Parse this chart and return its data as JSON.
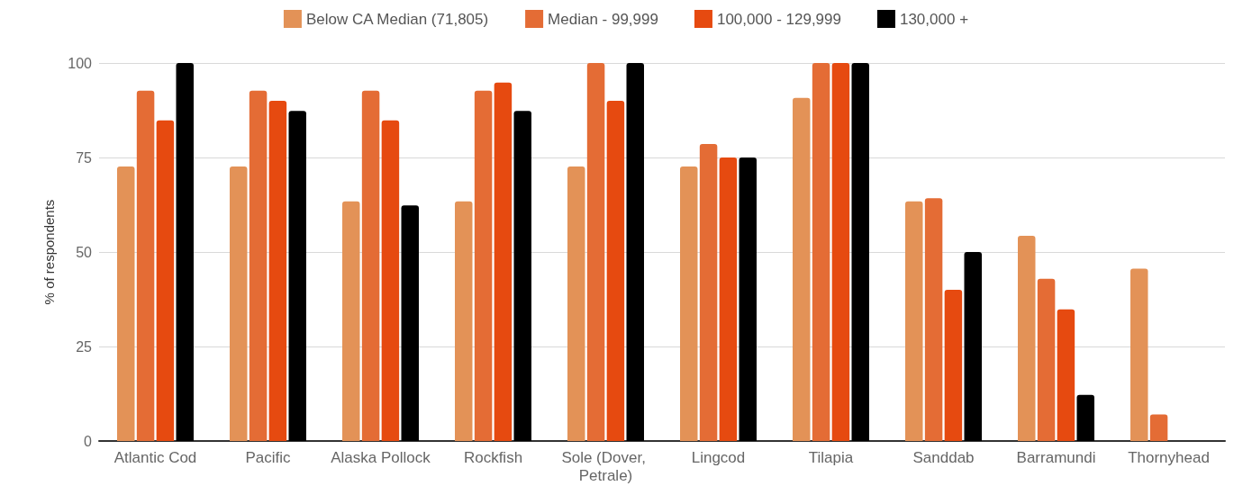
{
  "chart_data": {
    "type": "bar",
    "ylabel": "% of respondents",
    "categories": [
      "Atlantic Cod",
      "Pacific",
      "Alaska Pollock",
      "Rockfish",
      "Sole (Dover, Petrale)",
      "Lingcod",
      "Tilapia",
      "Sanddab",
      "Barramundi",
      "Thornyhead"
    ],
    "series": [
      {
        "name": "Below CA Median (71,805)",
        "color": "#e39257",
        "values": [
          72.6,
          72.6,
          63.4,
          63.4,
          72.6,
          72.6,
          90.8,
          63.4,
          54.3,
          45.6
        ]
      },
      {
        "name": "Median - 99,999",
        "color": "#e46c35",
        "values": [
          92.7,
          92.7,
          92.7,
          92.7,
          100,
          78.6,
          100,
          64.2,
          42.9,
          7.0
        ]
      },
      {
        "name": "100,000 - 129,999",
        "color": "#e64a10",
        "values": [
          84.8,
          90.0,
          84.8,
          94.8,
          90.0,
          75,
          100,
          40,
          34.8,
          0
        ]
      },
      {
        "name": "130,000 +",
        "color": "#000000",
        "values": [
          100,
          87.3,
          62.3,
          87.3,
          100,
          75,
          100,
          50,
          12.2,
          0
        ]
      }
    ],
    "ylim": [
      0,
      100
    ],
    "yticks": [
      0,
      25,
      50,
      75,
      100
    ],
    "grid": "y",
    "legend": "top"
  }
}
